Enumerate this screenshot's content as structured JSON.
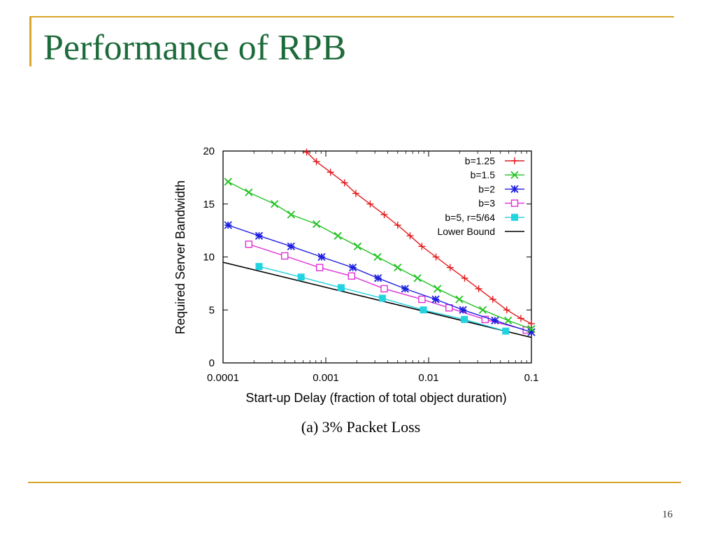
{
  "slide": {
    "title": "Performance of RPB",
    "page_number": "16"
  },
  "chart_data": {
    "type": "line",
    "title": "",
    "caption": "(a) 3% Packet Loss",
    "xlabel": "Start-up Delay (fraction of total object duration)",
    "ylabel": "Required Server Bandwidth",
    "xscale": "log",
    "xlim": [
      0.0001,
      0.1
    ],
    "ylim": [
      0,
      20
    ],
    "xticks": [
      {
        "value": 0.0001,
        "label": "0.0001"
      },
      {
        "value": 0.001,
        "label": "0.001"
      },
      {
        "value": 0.01,
        "label": "0.01"
      },
      {
        "value": 0.1,
        "label": "0.1"
      }
    ],
    "yticks": [
      {
        "value": 0,
        "label": "0"
      },
      {
        "value": 5,
        "label": "5"
      },
      {
        "value": 10,
        "label": "10"
      },
      {
        "value": 15,
        "label": "15"
      },
      {
        "value": 20,
        "label": "20"
      }
    ],
    "grid": false,
    "legend_position": "top-right",
    "series": [
      {
        "name": "b=1.25",
        "color": "#e31a1c",
        "marker": "plus",
        "x": [
          0.00065,
          0.00081,
          0.00111,
          0.00152,
          0.00196,
          0.0027,
          0.0037,
          0.005,
          0.0066,
          0.0086,
          0.0118,
          0.0162,
          0.0224,
          0.0307,
          0.0421,
          0.0576,
          0.079,
          0.1
        ],
        "y": [
          19.9,
          19.0,
          18.0,
          17.0,
          16.0,
          15.0,
          14.0,
          13.0,
          12.0,
          11.0,
          10.0,
          9.0,
          8.0,
          7.0,
          6.0,
          5.0,
          4.2,
          3.7
        ]
      },
      {
        "name": "b=1.5",
        "color": "#22c322",
        "marker": "x",
        "x": [
          0.000112,
          0.000178,
          0.000317,
          0.000459,
          0.00081,
          0.00131,
          0.00204,
          0.00319,
          0.005,
          0.0078,
          0.0122,
          0.0199,
          0.0336,
          0.0593,
          0.1
        ],
        "y": [
          17.1,
          16.1,
          15.0,
          14.0,
          13.1,
          12.0,
          11.0,
          10.0,
          9.0,
          8.0,
          7.0,
          6.0,
          5.0,
          4.0,
          3.2
        ]
      },
      {
        "name": "b=2",
        "color": "#1f1fe0",
        "marker": "star",
        "x": [
          0.000112,
          0.000224,
          0.000459,
          0.00091,
          0.00183,
          0.00322,
          0.0059,
          0.0117,
          0.0216,
          0.0442,
          0.1
        ],
        "y": [
          13.0,
          12.0,
          11.0,
          10.0,
          9.0,
          8.0,
          7.0,
          6.0,
          5.0,
          4.0,
          2.9
        ]
      },
      {
        "name": "b=3",
        "color": "#e030d6",
        "marker": "square-open",
        "x": [
          0.000178,
          0.000398,
          0.000871,
          0.00178,
          0.0037,
          0.0086,
          0.0158,
          0.0355,
          0.0891
        ],
        "y": [
          11.2,
          10.1,
          9.0,
          8.2,
          7.0,
          6.0,
          5.2,
          4.1,
          3.1
        ]
      },
      {
        "name": "b=5, r=5/64",
        "color": "#22d3e0",
        "marker": "square-filled",
        "x": [
          0.000224,
          0.000575,
          0.00141,
          0.00355,
          0.0089,
          0.0223,
          0.0562
        ],
        "y": [
          9.1,
          8.1,
          7.1,
          6.1,
          5.0,
          4.1,
          3.0
        ]
      },
      {
        "name": "Lower Bound",
        "color": "#000000",
        "marker": "none",
        "x": [
          0.0001,
          0.1
        ],
        "y": [
          9.5,
          2.4
        ]
      }
    ]
  }
}
